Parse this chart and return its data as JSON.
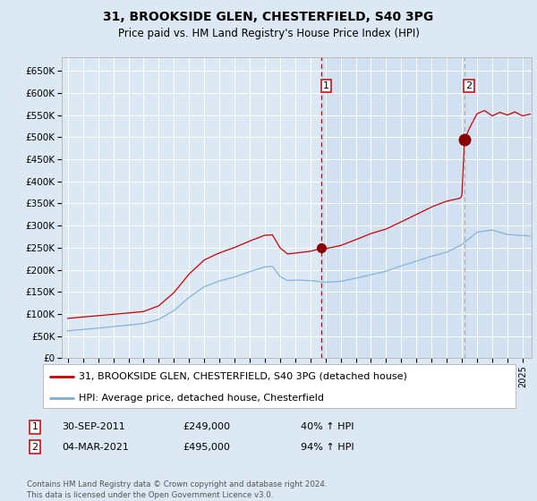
{
  "title_line1": "31, BROOKSIDE GLEN, CHESTERFIELD, S40 3PG",
  "title_line2": "Price paid vs. HM Land Registry's House Price Index (HPI)",
  "legend_line1": "31, BROOKSIDE GLEN, CHESTERFIELD, S40 3PG (detached house)",
  "legend_line2": "HPI: Average price, detached house, Chesterfield",
  "annotation1_date": "30-SEP-2011",
  "annotation1_price": "£249,000",
  "annotation1_hpi": "40% ↑ HPI",
  "annotation2_date": "04-MAR-2021",
  "annotation2_price": "£495,000",
  "annotation2_hpi": "94% ↑ HPI",
  "vline1_year": 2011.75,
  "vline2_year": 2021.17,
  "dot1_year": 2011.75,
  "dot1_value": 249000,
  "dot2_year": 2021.17,
  "dot2_value": 495000,
  "ylim": [
    0,
    680000
  ],
  "xlim_start": 1994.6,
  "xlim_end": 2025.6,
  "bg_color": "#dce8f4",
  "grid_color": "#ffffff",
  "red_line_color": "#cc0000",
  "blue_line_color": "#7aaed6",
  "vline1_color": "#cc0000",
  "vline2_color": "#aaaaaa",
  "dot_color": "#880000",
  "legend_bg": "#ffffff",
  "ann_box_color": "#cc0000",
  "footnote": "Contains HM Land Registry data © Crown copyright and database right 2024.\nThis data is licensed under the Open Government Licence v3.0.",
  "yticks": [
    0,
    50000,
    100000,
    150000,
    200000,
    250000,
    300000,
    350000,
    400000,
    450000,
    500000,
    550000,
    600000,
    650000
  ],
  "ytick_labels": [
    "£0",
    "£50K",
    "£100K",
    "£150K",
    "£200K",
    "£250K",
    "£300K",
    "£350K",
    "£400K",
    "£450K",
    "£500K",
    "£550K",
    "£600K",
    "£650K"
  ]
}
